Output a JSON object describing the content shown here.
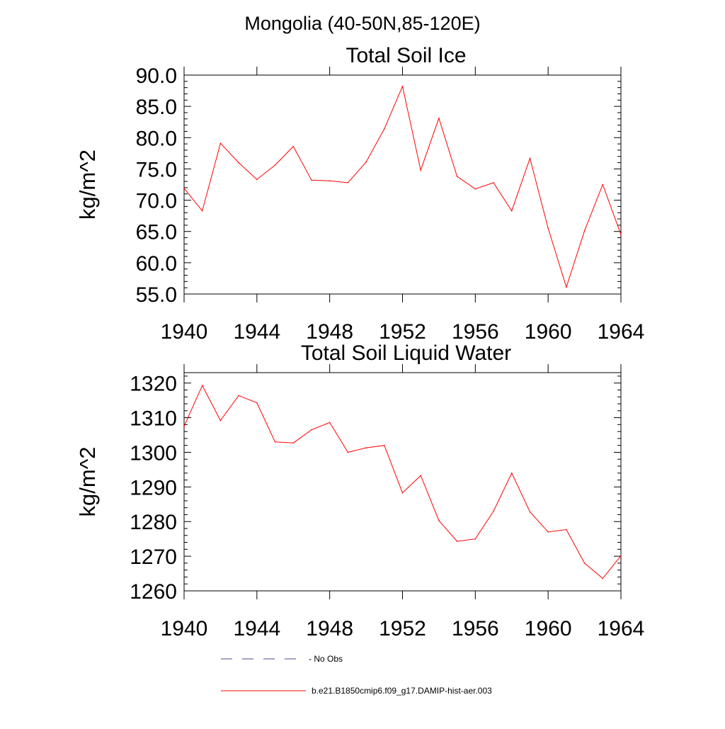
{
  "figure": {
    "suptitle": "Mongolia (40-50N,85-120E)"
  },
  "legend": {
    "placement": "bottom",
    "entries": [
      {
        "label": "No Obs",
        "color": "#4a4a8a",
        "style": "dashed"
      },
      {
        "label": "b.e21.B1850cmip6.f09_g17.DAMIP-hist-aer.003",
        "color": "#ff0000",
        "style": "solid"
      }
    ]
  },
  "chart_data": [
    {
      "type": "line",
      "title": "Total Soil Ice",
      "ylabel": "kg/m^2",
      "xlabel": "",
      "xlim": [
        1940,
        1964
      ],
      "ylim": [
        55,
        90
      ],
      "xticks": [
        1940,
        1944,
        1948,
        1952,
        1956,
        1960,
        1964
      ],
      "yticks": [
        "55.0",
        "60.0",
        "65.0",
        "70.0",
        "75.0",
        "80.0",
        "85.0",
        "90.0"
      ],
      "x": [
        1940,
        1941,
        1942,
        1943,
        1944,
        1945,
        1946,
        1947,
        1948,
        1949,
        1950,
        1951,
        1952,
        1953,
        1954,
        1955,
        1956,
        1957,
        1958,
        1959,
        1960,
        1961,
        1962,
        1963,
        1964
      ],
      "series": [
        {
          "color": "#ff0000",
          "values": [
            71.9,
            68.3,
            79.1,
            76.0,
            73.3,
            75.6,
            78.6,
            73.2,
            73.1,
            72.8,
            76.1,
            81.4,
            88.2,
            74.8,
            83.1,
            73.8,
            71.8,
            72.8,
            68.3,
            76.7,
            65.5,
            56.1,
            65.1,
            72.5,
            64.5
          ]
        }
      ]
    },
    {
      "type": "line",
      "title": "Total Soil Liquid Water",
      "ylabel": "kg/m^2",
      "xlabel": "",
      "xlim": [
        1940,
        1964
      ],
      "ylim": [
        1260,
        1323
      ],
      "xticks": [
        1940,
        1944,
        1948,
        1952,
        1956,
        1960,
        1964
      ],
      "yticks": [
        "1260",
        "1270",
        "1280",
        "1290",
        "1300",
        "1310",
        "1320"
      ],
      "x": [
        1940,
        1941,
        1942,
        1943,
        1944,
        1945,
        1946,
        1947,
        1948,
        1949,
        1950,
        1951,
        1952,
        1953,
        1954,
        1955,
        1956,
        1957,
        1958,
        1959,
        1960,
        1961,
        1962,
        1963,
        1964
      ],
      "series": [
        {
          "color": "#ff0000",
          "values": [
            1307.5,
            1319.3,
            1309.2,
            1316.4,
            1314.3,
            1303.0,
            1302.7,
            1306.5,
            1308.6,
            1300.0,
            1301.3,
            1302.0,
            1288.3,
            1293.3,
            1280.3,
            1274.3,
            1275.0,
            1283.0,
            1294.0,
            1282.8,
            1277.0,
            1277.7,
            1268.0,
            1263.6,
            1270.1
          ]
        }
      ]
    }
  ]
}
